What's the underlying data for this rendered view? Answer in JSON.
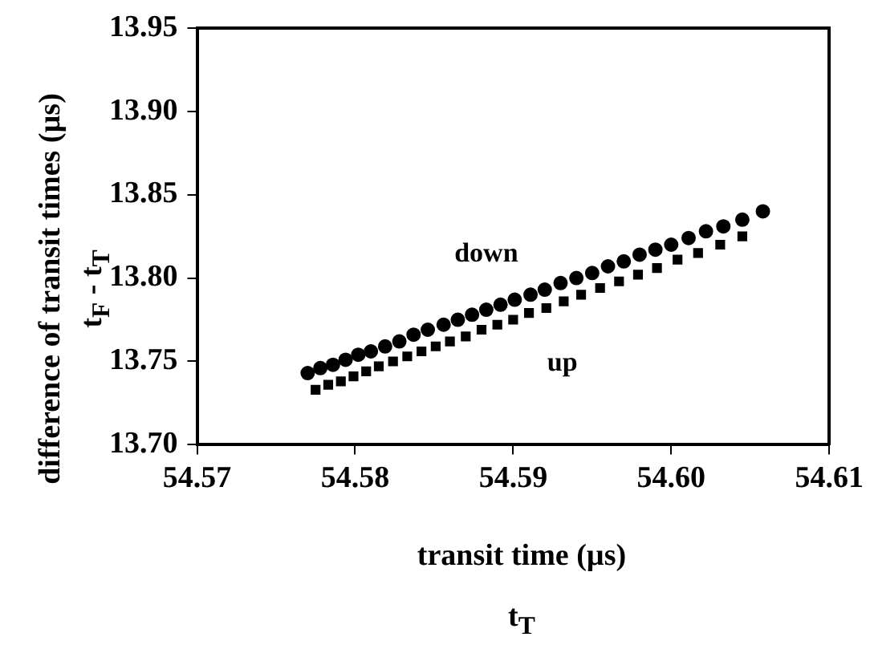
{
  "chart_data": {
    "type": "scatter",
    "xlabel": "transit time (µs)\nt$_{T}$",
    "ylabel": "difference of transit times (µs)\nt$_{F}$ - t$_{T}$",
    "xlim": [
      54.57,
      54.61
    ],
    "xticks": [
      {
        "value": 54.57,
        "label": "54.57"
      },
      {
        "value": 54.58,
        "label": "54.58"
      },
      {
        "value": 54.59,
        "label": "54.59"
      },
      {
        "value": 54.6,
        "label": "54.60"
      },
      {
        "value": 54.61,
        "label": "54.61"
      }
    ],
    "ylim": [
      13.7,
      13.95
    ],
    "yticks": [
      {
        "value": 13.7,
        "label": "13.70"
      },
      {
        "value": 13.75,
        "label": "13.75"
      },
      {
        "value": 13.8,
        "label": "13.80"
      },
      {
        "value": 13.85,
        "label": "13.85"
      },
      {
        "value": 13.9,
        "label": "13.90"
      },
      {
        "value": 13.95,
        "label": "13.95"
      }
    ],
    "grid": false,
    "legend": false,
    "series": [
      {
        "name": "down",
        "color": "#000000",
        "marker": "circle",
        "x": [
          54.577,
          54.5778,
          54.5786,
          54.5794,
          54.5802,
          54.581,
          54.5819,
          54.5828,
          54.5837,
          54.5846,
          54.5856,
          54.5865,
          54.5874,
          54.5883,
          54.5892,
          54.5901,
          54.5911,
          54.592,
          54.593,
          54.594,
          54.595,
          54.596,
          54.597,
          54.598,
          54.599,
          54.6,
          54.6011,
          54.6022,
          54.6033,
          54.6045,
          54.6058
        ],
        "values": [
          13.743,
          13.746,
          13.748,
          13.751,
          13.754,
          13.756,
          13.759,
          13.762,
          13.766,
          13.769,
          13.772,
          13.775,
          13.778,
          13.781,
          13.784,
          13.787,
          13.79,
          13.793,
          13.797,
          13.8,
          13.803,
          13.807,
          13.81,
          13.814,
          13.817,
          13.82,
          13.824,
          13.828,
          13.831,
          13.835,
          13.84
        ]
      },
      {
        "name": "up",
        "color": "#000000",
        "marker": "square",
        "x": [
          54.5775,
          54.5783,
          54.5791,
          54.5799,
          54.5807,
          54.5815,
          54.5824,
          54.5833,
          54.5842,
          54.5851,
          54.586,
          54.587,
          54.588,
          54.589,
          54.59,
          54.591,
          54.5921,
          54.5932,
          54.5943,
          54.5955,
          54.5967,
          54.5979,
          54.5991,
          54.6004,
          54.6017,
          54.6031,
          54.6045
        ],
        "values": [
          13.733,
          13.736,
          13.738,
          13.741,
          13.744,
          13.747,
          13.75,
          13.753,
          13.756,
          13.759,
          13.762,
          13.765,
          13.769,
          13.772,
          13.775,
          13.779,
          13.782,
          13.786,
          13.79,
          13.794,
          13.798,
          13.802,
          13.806,
          13.811,
          13.815,
          13.82,
          13.825
        ]
      }
    ]
  }
}
